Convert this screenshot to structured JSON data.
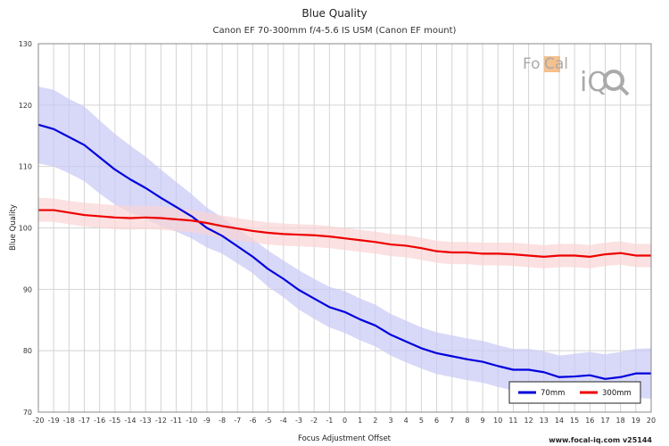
{
  "chart_data": {
    "type": "line",
    "title": "Blue Quality",
    "subtitle": "Canon EF 70-300mm f/4-5.6 IS USM (Canon EF mount)",
    "xlabel": "Focus Adjustment Offset",
    "ylabel": "Blue Quality",
    "xlim": [
      -20,
      20
    ],
    "ylim": [
      70,
      130
    ],
    "xticks": [
      -20,
      -19,
      -18,
      -17,
      -16,
      -15,
      -14,
      -13,
      -12,
      -11,
      -10,
      -9,
      -8,
      -7,
      -6,
      -5,
      -4,
      -3,
      -2,
      -1,
      0,
      1,
      2,
      3,
      4,
      5,
      6,
      7,
      8,
      9,
      10,
      11,
      12,
      13,
      14,
      15,
      16,
      17,
      18,
      19,
      20
    ],
    "yticks": [
      70,
      80,
      90,
      100,
      110,
      120,
      130
    ],
    "grid": true,
    "legend_position": "bottom-right",
    "x": [
      -20,
      -19,
      -18,
      -17,
      -16,
      -15,
      -14,
      -13,
      -12,
      -11,
      -10,
      -9,
      -8,
      -7,
      -6,
      -5,
      -4,
      -3,
      -2,
      -1,
      0,
      1,
      2,
      3,
      4,
      5,
      6,
      7,
      8,
      9,
      10,
      11,
      12,
      13,
      14,
      15,
      16,
      17,
      18,
      19,
      20
    ],
    "series": [
      {
        "name": "70mm",
        "color": "#0000dd",
        "band_color": "#c8c8f5",
        "values": [
          116.8,
          116.1,
          114.8,
          113.5,
          111.5,
          109.5,
          107.9,
          106.5,
          104.9,
          103.4,
          101.9,
          100.0,
          98.7,
          97.0,
          95.3,
          93.3,
          91.7,
          89.9,
          88.5,
          87.1,
          86.3,
          85.1,
          84.1,
          82.6,
          81.5,
          80.4,
          79.6,
          79.1,
          78.6,
          78.2,
          77.5,
          76.9,
          76.9,
          76.5,
          75.7,
          75.8,
          76.0,
          75.4,
          75.7,
          76.3,
          76.3
        ],
        "band_upper": [
          123.0,
          122.5,
          121.0,
          119.8,
          117.5,
          115.3,
          113.4,
          111.6,
          109.5,
          107.5,
          105.5,
          103.3,
          101.7,
          99.9,
          98.2,
          96.3,
          94.7,
          93.1,
          91.7,
          90.4,
          89.7,
          88.5,
          87.5,
          86.0,
          84.9,
          83.8,
          83.0,
          82.5,
          82.0,
          81.6,
          80.9,
          80.3,
          80.3,
          79.9,
          79.2,
          79.5,
          79.8,
          79.4,
          79.8,
          80.3,
          80.4
        ],
        "band_lower": [
          110.5,
          110.0,
          108.9,
          107.6,
          105.6,
          103.8,
          102.5,
          101.4,
          100.3,
          99.4,
          98.3,
          96.8,
          95.8,
          94.2,
          92.6,
          90.4,
          88.7,
          86.7,
          85.2,
          83.8,
          82.9,
          81.7,
          80.7,
          79.2,
          78.1,
          77.1,
          76.2,
          75.7,
          75.2,
          74.8,
          74.1,
          73.5,
          73.5,
          73.1,
          72.3,
          72.3,
          72.3,
          71.4,
          71.6,
          72.3,
          72.2
        ]
      },
      {
        "name": "300mm",
        "color": "#ee0000",
        "band_color": "#fad4d4",
        "values": [
          102.9,
          102.9,
          102.5,
          102.1,
          101.9,
          101.7,
          101.6,
          101.7,
          101.6,
          101.4,
          101.2,
          100.8,
          100.3,
          99.9,
          99.5,
          99.2,
          99.0,
          98.9,
          98.8,
          98.6,
          98.3,
          98.0,
          97.7,
          97.3,
          97.1,
          96.7,
          96.2,
          96.0,
          96.0,
          95.8,
          95.8,
          95.7,
          95.5,
          95.3,
          95.5,
          95.5,
          95.3,
          95.7,
          95.9,
          95.5,
          95.5
        ],
        "band_upper": [
          104.9,
          104.8,
          104.4,
          104.1,
          103.9,
          103.7,
          103.6,
          103.6,
          103.5,
          103.2,
          102.9,
          102.5,
          102.0,
          101.6,
          101.2,
          100.9,
          100.7,
          100.6,
          100.5,
          100.3,
          100.0,
          99.7,
          99.4,
          99.0,
          98.8,
          98.4,
          97.9,
          97.7,
          97.7,
          97.6,
          97.6,
          97.6,
          97.4,
          97.2,
          97.4,
          97.4,
          97.2,
          97.6,
          97.8,
          97.4,
          97.4
        ],
        "band_lower": [
          101.0,
          101.0,
          100.6,
          100.2,
          100.0,
          99.8,
          99.7,
          99.8,
          99.7,
          99.5,
          99.3,
          98.9,
          98.4,
          98.0,
          97.6,
          97.3,
          97.1,
          97.0,
          96.9,
          96.7,
          96.4,
          96.1,
          95.8,
          95.4,
          95.2,
          94.8,
          94.3,
          94.1,
          94.1,
          93.9,
          93.9,
          93.8,
          93.6,
          93.4,
          93.6,
          93.6,
          93.4,
          93.8,
          94.0,
          93.6,
          93.6
        ]
      }
    ]
  },
  "logo": {
    "name": "FoCal iQ",
    "text_fo": "Fo",
    "text_cal": "Cal",
    "text_iq": "iQ"
  },
  "footer": {
    "text": "www.focal-iq.com  v25144"
  }
}
